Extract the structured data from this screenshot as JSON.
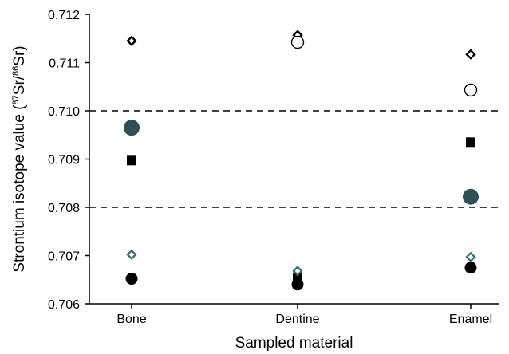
{
  "chart_data": {
    "type": "scatter",
    "xlabel": "Sampled material",
    "ylabel": {
      "prefix": "Strontium isotope value (",
      "num_sup": "87",
      "num": "Sr/",
      "den_sup": "86",
      "den": "Sr)"
    },
    "categories": [
      "Bone",
      "Dentine",
      "Enamel"
    ],
    "ylim": [
      0.706,
      0.712
    ],
    "yticks": [
      "0.706",
      "0.707",
      "0.708",
      "0.709",
      "0.710",
      "0.711",
      "0.712"
    ],
    "reference_lines": [
      0.708,
      0.71
    ],
    "grid": false,
    "legend": "none",
    "series": [
      {
        "marker": "open-diamond",
        "color": "#000000",
        "values": [
          0.71145,
          0.71157,
          0.71117
        ]
      },
      {
        "marker": "open-circle",
        "color": "#000000",
        "values": [
          null,
          0.71142,
          0.71043
        ]
      },
      {
        "marker": "large-filled-circle",
        "color": "#2f4f57",
        "values": [
          0.70965,
          null,
          0.70822
        ]
      },
      {
        "marker": "filled-square",
        "color": "#000000",
        "values": [
          0.70897,
          0.70655,
          0.70935
        ]
      },
      {
        "marker": "open-diamond",
        "color": "#3d6f78",
        "values": [
          0.70702,
          0.70668,
          0.70697
        ]
      },
      {
        "marker": "filled-circle",
        "color": "#000000",
        "values": [
          0.70652,
          0.7064,
          0.70675
        ]
      }
    ]
  }
}
